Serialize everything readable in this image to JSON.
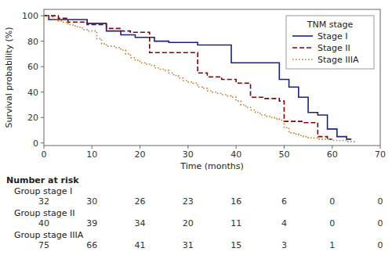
{
  "chart_data": {
    "type": "step",
    "xlabel": "Time (months)",
    "ylabel": "Survival probability (%)",
    "xlim": [
      0,
      70
    ],
    "ylim": [
      -2,
      105
    ],
    "xticks": [
      0,
      10,
      20,
      30,
      40,
      50,
      60,
      70
    ],
    "yticks": [
      0,
      20,
      40,
      60,
      80,
      100
    ],
    "grid": false,
    "legend": "upper right",
    "legend_title": "TNM stage",
    "series": [
      {
        "name": "Stage I",
        "color": "#1a237e",
        "line_style": "solid",
        "x": [
          0,
          1,
          2,
          3,
          4,
          5,
          6,
          7,
          8,
          9,
          10,
          11,
          12,
          13,
          14,
          15,
          16,
          17,
          18,
          19,
          20,
          21,
          22,
          23,
          24,
          25,
          26,
          27,
          28,
          29,
          30,
          31,
          32,
          33,
          34,
          35,
          36,
          37,
          38,
          39,
          40,
          41,
          42,
          43,
          44,
          45,
          46,
          47,
          48,
          49,
          50,
          51,
          52,
          53,
          54,
          55,
          56,
          57,
          58,
          59,
          60,
          61,
          62,
          63,
          64
        ],
        "values": [
          100,
          97,
          97,
          97,
          97,
          97,
          97,
          97,
          97,
          94,
          94,
          94,
          94,
          88,
          88,
          88,
          85,
          85,
          85,
          83,
          83,
          83,
          83,
          80,
          80,
          80,
          79,
          79,
          79,
          79,
          79,
          79,
          77,
          77,
          77,
          77,
          77,
          77,
          77,
          63,
          63,
          63,
          63,
          63,
          63,
          63,
          63,
          63,
          63,
          50,
          50,
          44,
          44,
          36,
          36,
          24,
          24,
          22,
          22,
          11,
          11,
          5,
          5,
          3,
          3
        ]
      },
      {
        "name": "Stage II",
        "color": "#8b0000",
        "line_style": "dashed",
        "x": [
          0,
          1,
          2,
          3,
          4,
          5,
          6,
          7,
          8,
          9,
          10,
          11,
          12,
          13,
          14,
          15,
          16,
          17,
          18,
          19,
          20,
          21,
          22,
          23,
          24,
          25,
          26,
          27,
          28,
          29,
          30,
          31,
          32,
          33,
          34,
          35,
          36,
          37,
          38,
          39,
          40,
          41,
          42,
          43,
          44,
          45,
          46,
          47,
          48,
          49,
          50,
          51,
          52,
          53,
          54,
          55,
          56,
          57,
          58,
          59,
          60
        ],
        "values": [
          100,
          100,
          100,
          98,
          98,
          95,
          95,
          95,
          95,
          93,
          93,
          93,
          93,
          90,
          90,
          90,
          88,
          88,
          87,
          87,
          87,
          87,
          71,
          71,
          71,
          71,
          71,
          71,
          71,
          71,
          71,
          71,
          55,
          55,
          52,
          52,
          52,
          50,
          50,
          50,
          47,
          47,
          47,
          36,
          36,
          36,
          35,
          35,
          35,
          33,
          17,
          17,
          17,
          17,
          16,
          16,
          16,
          5,
          5,
          3,
          3
        ]
      },
      {
        "name": "Stage IIIA",
        "color": "#cc7722",
        "line_style": "dotted",
        "x": [
          0,
          1,
          2,
          3,
          4,
          5,
          6,
          7,
          8,
          9,
          10,
          11,
          12,
          13,
          14,
          15,
          16,
          17,
          18,
          19,
          20,
          21,
          22,
          23,
          24,
          25,
          26,
          27,
          28,
          29,
          30,
          31,
          32,
          33,
          34,
          35,
          36,
          37,
          38,
          39,
          40,
          41,
          42,
          43,
          44,
          45,
          46,
          47,
          48,
          49,
          50,
          51,
          52,
          53,
          54,
          55,
          56,
          57,
          58,
          59,
          60,
          61,
          62,
          63,
          64,
          65
        ],
        "values": [
          100,
          99,
          97,
          96,
          95,
          93,
          92,
          91,
          89,
          88,
          88,
          82,
          78,
          76,
          76,
          75,
          73,
          70,
          67,
          65,
          63,
          62,
          61,
          59,
          58,
          57,
          55,
          53,
          51,
          49,
          48,
          47,
          44,
          43,
          41,
          40,
          39,
          38,
          37,
          36,
          33,
          30,
          28,
          26,
          24,
          22,
          21,
          20,
          19,
          18,
          12,
          8,
          7,
          6,
          5,
          4,
          4,
          3,
          3,
          3,
          2,
          2,
          2,
          1,
          1,
          1
        ]
      }
    ],
    "risk_table": {
      "header": "Number at risk",
      "times": [
        0,
        10,
        20,
        30,
        40,
        50,
        60,
        70
      ],
      "rows": [
        {
          "label": "Group stage I",
          "counts": [
            32,
            30,
            26,
            23,
            16,
            6,
            0,
            0
          ]
        },
        {
          "label": "Group stage II",
          "counts": [
            40,
            39,
            34,
            20,
            11,
            4,
            0,
            0
          ]
        },
        {
          "label": "Group stage IIIA",
          "counts": [
            75,
            66,
            41,
            31,
            15,
            3,
            1,
            0
          ]
        }
      ]
    }
  }
}
